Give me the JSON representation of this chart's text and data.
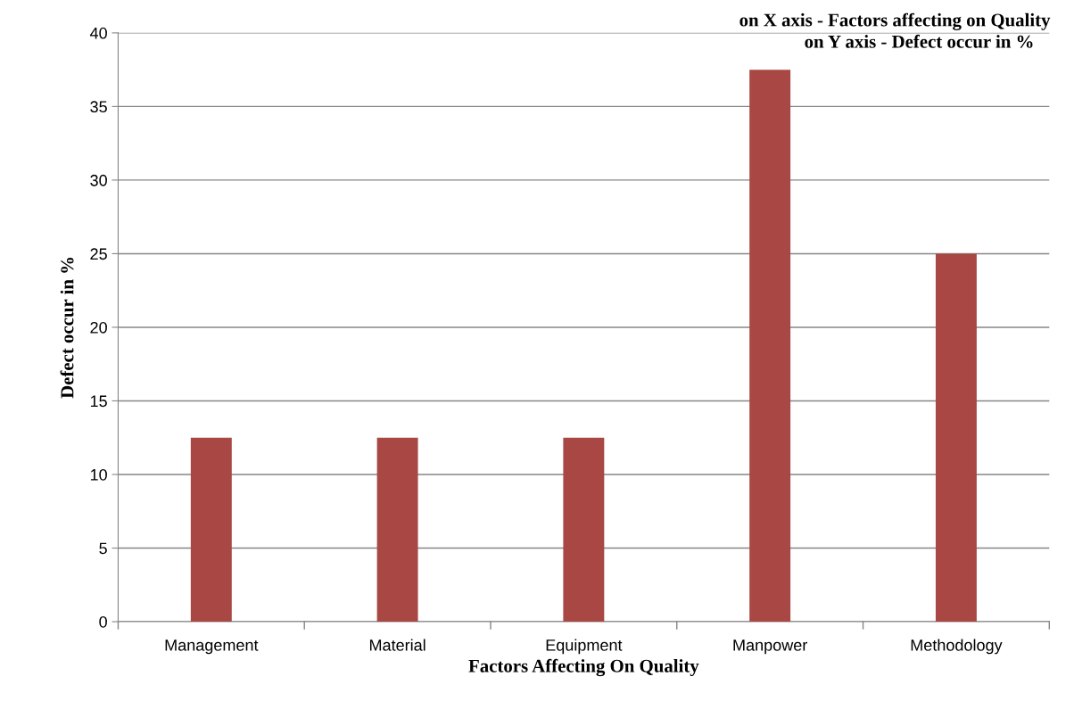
{
  "chart_data": {
    "type": "bar",
    "xlabel": "Factors Affecting On Quality",
    "ylabel": "Defect occur in %",
    "annotations": [
      "on X axis - Factors affecting on Quality",
      "on Y axis - Defect occur in %"
    ],
    "categories": [
      "Management",
      "Material",
      "Equipment",
      "Manpower",
      "Methodology"
    ],
    "values": [
      12.5,
      12.5,
      12.5,
      37.5,
      25
    ],
    "color": "#a84743",
    "ylim": [
      0,
      40
    ],
    "yticks": [
      0,
      5,
      10,
      15,
      20,
      25,
      30,
      35,
      40
    ],
    "grid": "y"
  }
}
